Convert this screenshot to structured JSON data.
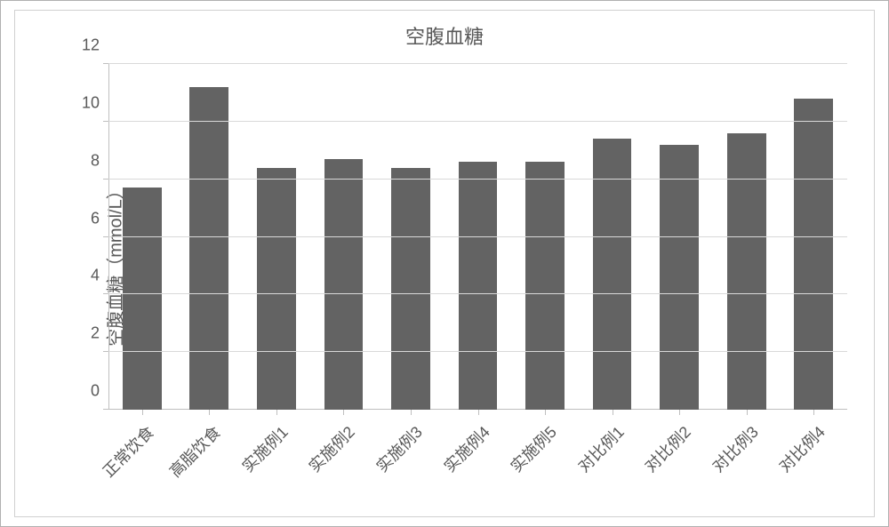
{
  "chart": {
    "type": "bar",
    "title": "空腹血糖",
    "title_fontsize": 22,
    "title_color": "#595959",
    "ylabel": "空腹血糖（mmol/L）",
    "ylabel_fontsize": 20,
    "ylabel_color": "#595959",
    "categories": [
      "正常饮食",
      "高脂饮食",
      "实施例1",
      "实施例2",
      "实施例3",
      "实施例4",
      "实施例5",
      "对比例1",
      "对比例2",
      "对比例3",
      "对比例4"
    ],
    "values": [
      7.7,
      11.2,
      8.4,
      8.7,
      8.4,
      8.6,
      8.6,
      9.4,
      9.2,
      9.6,
      10.8
    ],
    "bar_color": "#636363",
    "bar_width_ratio": 0.58,
    "ylim": [
      0,
      12
    ],
    "ytick_step": 2,
    "yticks": [
      0,
      2,
      4,
      6,
      8,
      10,
      12
    ],
    "tick_label_fontsize": 18,
    "tick_label_color": "#595959",
    "background_color": "#ffffff",
    "grid_color": "#d9d9d9",
    "axis_color": "#bfbfbf",
    "outer_border_color": "#b0b0b0",
    "inner_border_color": "#d0d0d0",
    "x_label_rotation": -45,
    "grid_horizontal": true,
    "grid_vertical": false
  }
}
